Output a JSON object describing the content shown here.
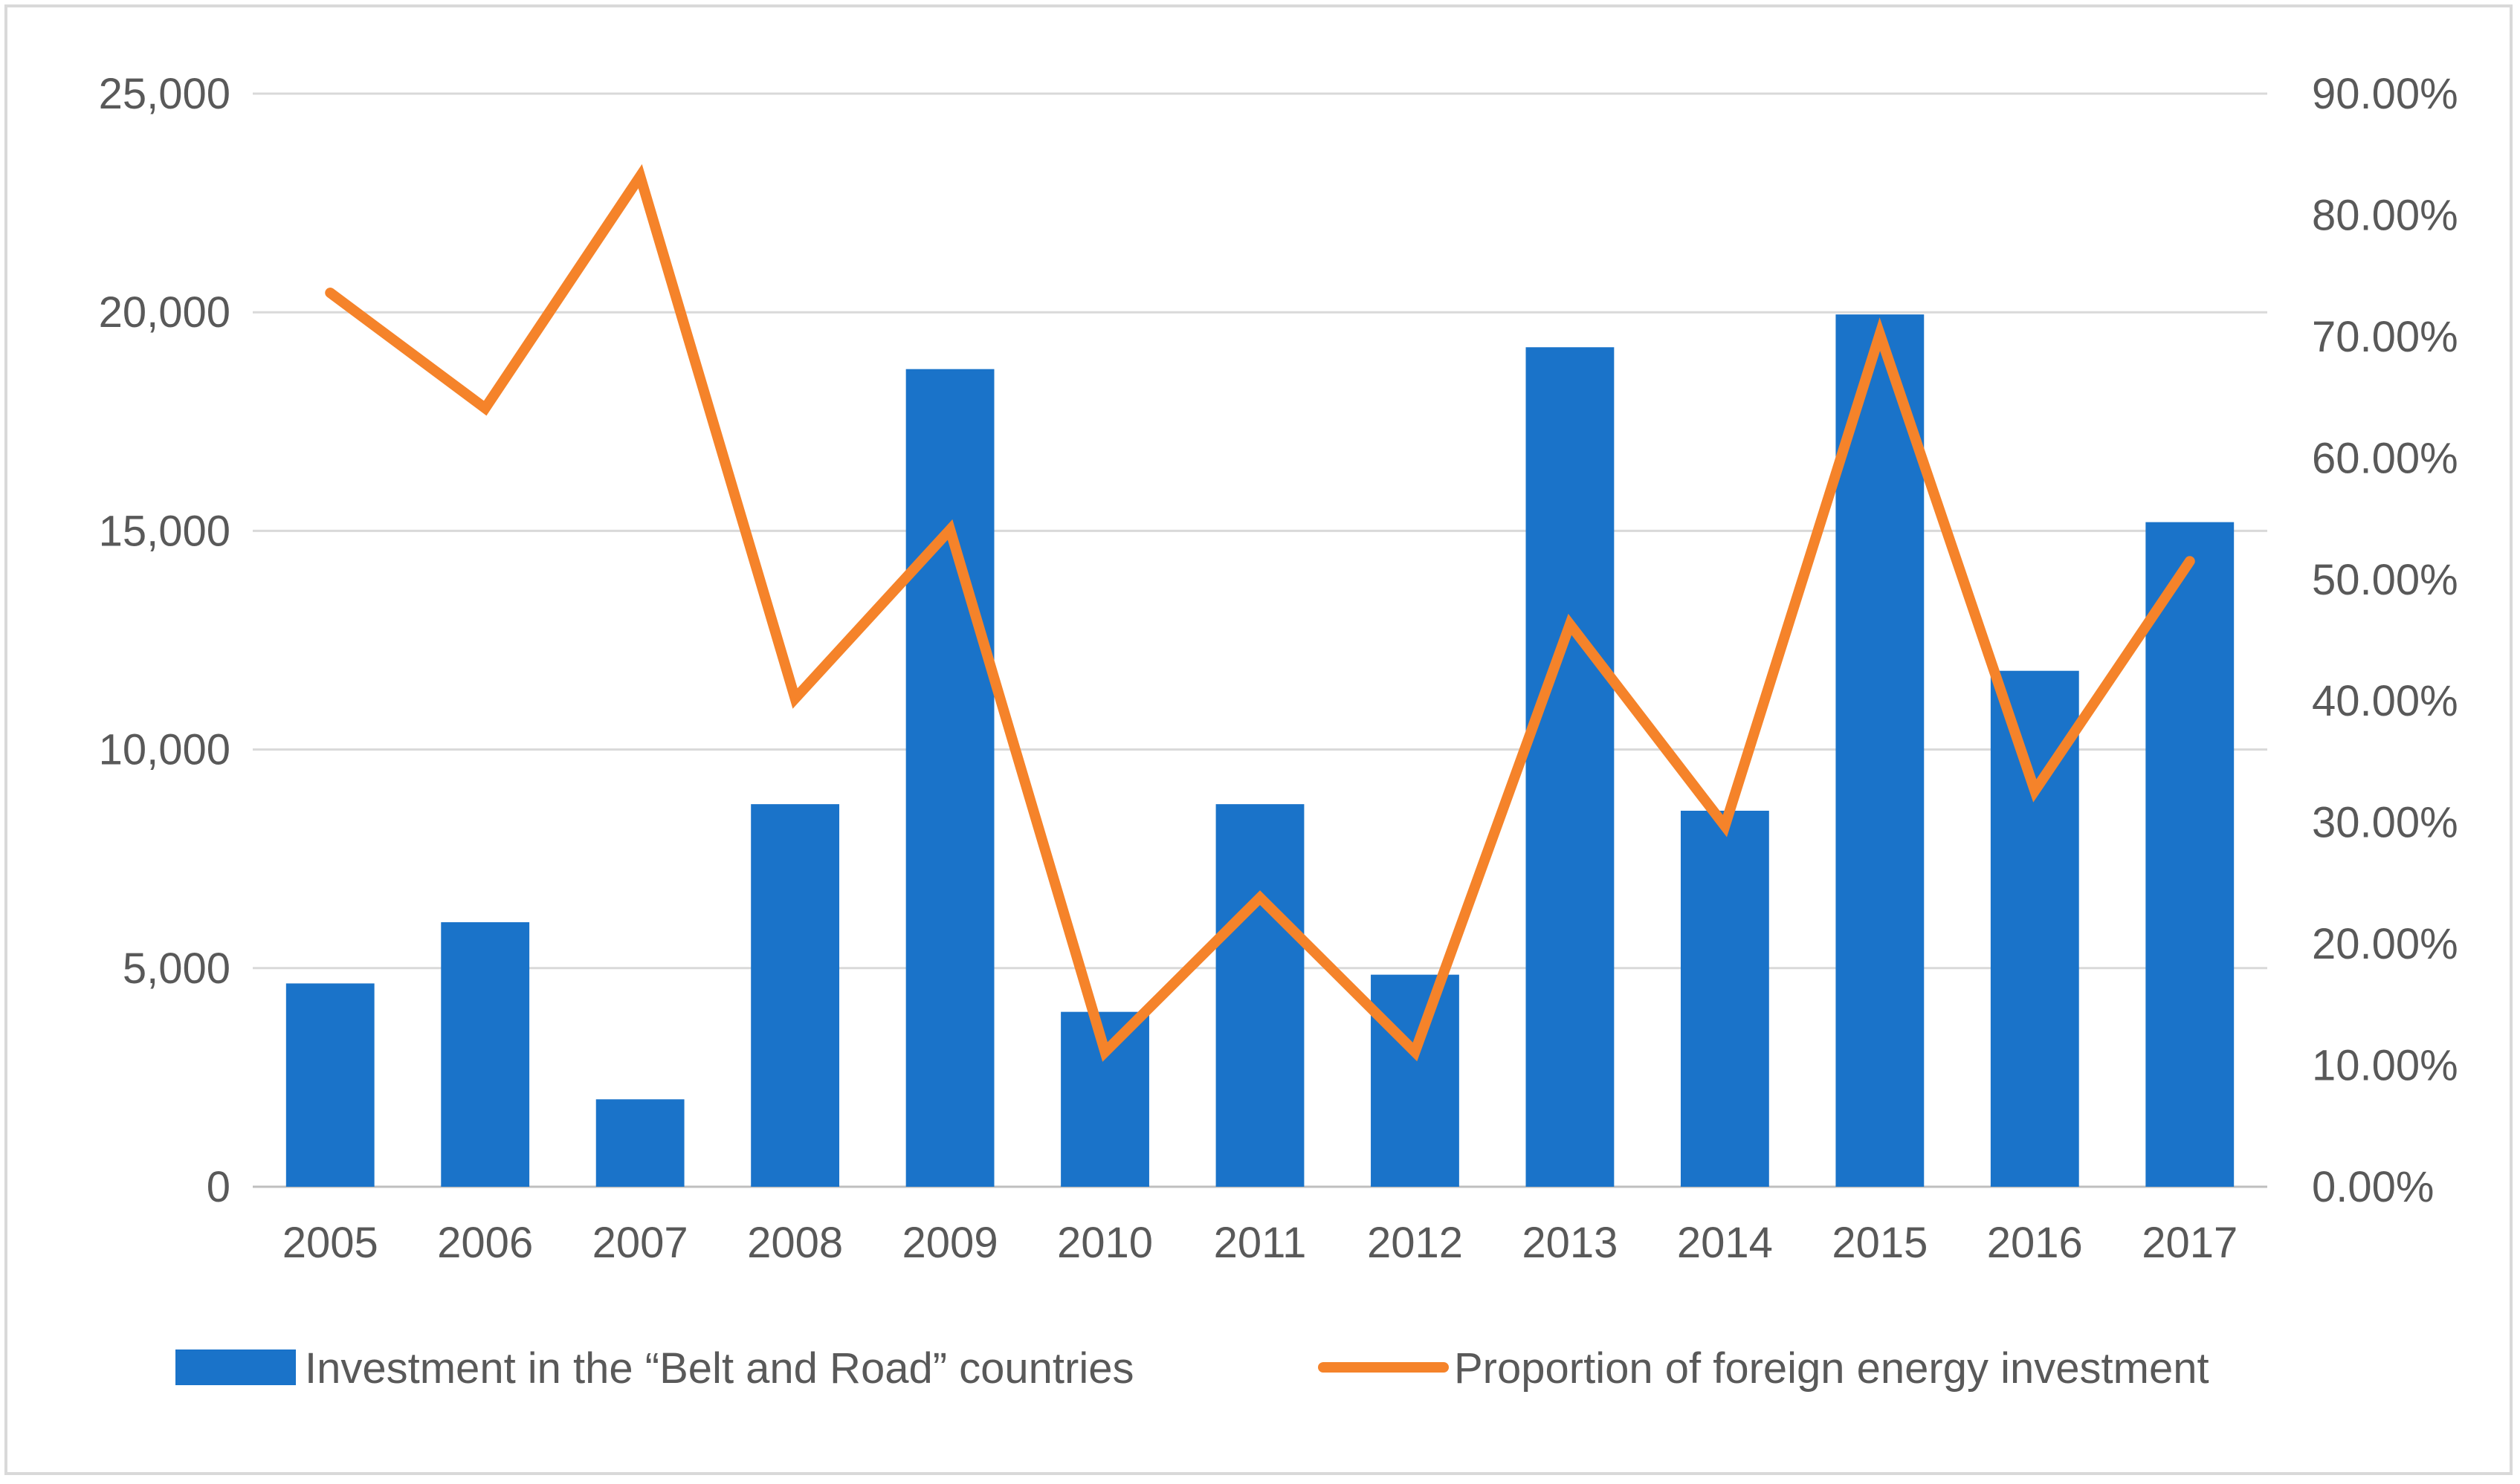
{
  "chart_data": {
    "type": "bar",
    "categories": [
      "2005",
      "2006",
      "2007",
      "2008",
      "2009",
      "2010",
      "2011",
      "2012",
      "2013",
      "2014",
      "2015",
      "2016",
      "2017"
    ],
    "series": [
      {
        "name": "Investment in the “Belt and Road” countries",
        "type": "bar",
        "axis": "left",
        "color": "#1a73c9",
        "values": [
          4650,
          6050,
          2000,
          8750,
          18700,
          4000,
          8750,
          4850,
          19200,
          8600,
          19950,
          11800,
          15200
        ]
      },
      {
        "name": "Proportion of foreign energy investment",
        "type": "line",
        "axis": "right",
        "color": "#f5832a",
        "values": [
          73.6,
          64.1,
          83.2,
          40.2,
          54.1,
          11.1,
          23.8,
          11.1,
          46.3,
          29.7,
          70.2,
          32.6,
          51.5
        ]
      }
    ],
    "y_left": {
      "lim": [
        0,
        25000
      ],
      "ticks": [
        0,
        5000,
        10000,
        15000,
        20000,
        25000
      ],
      "tick_labels": [
        "0",
        "5,000",
        "10,000",
        "15,000",
        "20,000",
        "25,000"
      ]
    },
    "y_right": {
      "lim": [
        0,
        90
      ],
      "ticks": [
        0,
        10,
        20,
        30,
        40,
        50,
        60,
        70,
        80,
        90
      ],
      "tick_labels": [
        "0.00%",
        "10.00%",
        "20.00%",
        "30.00%",
        "40.00%",
        "50.00%",
        "60.00%",
        "70.00%",
        "80.00%",
        "90.00%"
      ]
    },
    "grid": true,
    "legend_position": "bottom",
    "title": "",
    "xlabel": "",
    "ylabel": ""
  }
}
